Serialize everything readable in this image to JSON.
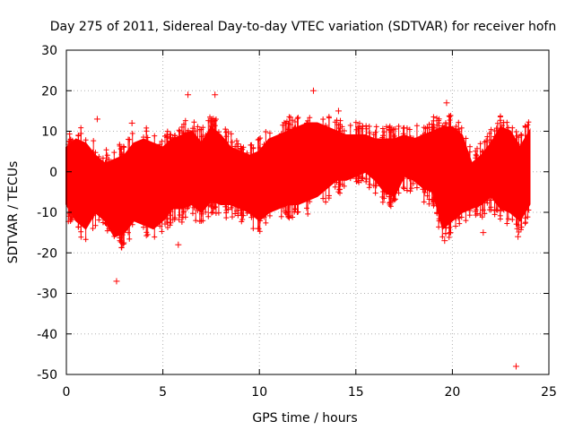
{
  "chart_data": {
    "type": "scatter",
    "title": "Day 275 of 2011, Sidereal Day-to-day VTEC variation (SDTVAR) for receiver hofn",
    "xlabel": "GPS time / hours",
    "ylabel": "SDTVAR / TECUs",
    "xlim": [
      0,
      25
    ],
    "ylim": [
      -50,
      30
    ],
    "xticks": [
      0,
      5,
      10,
      15,
      20,
      25
    ],
    "yticks": [
      30,
      20,
      10,
      0,
      -10,
      -20,
      -30,
      -40,
      -50
    ],
    "xtick_labels": [
      "0",
      "5",
      "10",
      "15",
      "20",
      "25"
    ],
    "ytick_labels": [
      "30",
      "20",
      "10",
      "0",
      "-10",
      "-20",
      "-30",
      "-40",
      "-50"
    ],
    "grid": true,
    "marker": "+",
    "color": "#ff0000",
    "series": [
      {
        "name": "SDTVAR",
        "band": {
          "x": [
            0,
            0.5,
            1,
            1.5,
            2,
            2.5,
            3,
            3.5,
            4,
            4.5,
            5,
            5.5,
            6,
            6.5,
            7,
            7.5,
            8,
            8.5,
            9,
            9.5,
            10,
            10.5,
            11,
            11.5,
            12,
            12.5,
            13,
            13.5,
            14,
            14.5,
            15,
            15.5,
            16,
            16.5,
            17,
            17.5,
            18,
            18.5,
            19,
            19.5,
            20,
            20.5,
            21,
            21.5,
            22,
            22.5,
            23,
            23.5,
            24
          ],
          "upper": [
            6,
            8,
            7,
            4,
            2,
            3,
            4,
            7,
            8,
            7,
            6,
            8,
            9,
            10,
            7,
            11,
            9,
            6,
            5,
            4,
            5,
            8,
            9,
            10,
            11,
            12,
            12,
            11,
            10,
            9,
            9,
            9,
            8,
            8,
            8,
            9,
            8,
            9,
            10,
            11,
            11,
            9,
            2,
            4,
            7,
            11,
            10,
            6,
            10
          ],
          "lower": [
            -8,
            -12,
            -14,
            -10,
            -12,
            -16,
            -15,
            -12,
            -13,
            -14,
            -12,
            -9,
            -9,
            -8,
            -10,
            -7,
            -8,
            -8,
            -9,
            -10,
            -12,
            -10,
            -9,
            -8,
            -8,
            -7,
            -6,
            -4,
            -2,
            -2,
            -1,
            0,
            -2,
            -5,
            -6,
            -1,
            -2,
            -4,
            -5,
            -14,
            -12,
            -10,
            -9,
            -8,
            -6,
            -9,
            -10,
            -12,
            -8
          ]
        },
        "outliers": [
          {
            "x": 2.6,
            "y": -27
          },
          {
            "x": 23.3,
            "y": -48
          },
          {
            "x": 6.3,
            "y": 19
          },
          {
            "x": 7.7,
            "y": 19
          },
          {
            "x": 12.8,
            "y": 20
          },
          {
            "x": 14.1,
            "y": 15
          },
          {
            "x": 19.7,
            "y": 17
          },
          {
            "x": 3.4,
            "y": 12
          },
          {
            "x": 1.6,
            "y": 13
          },
          {
            "x": 5.8,
            "y": -18
          },
          {
            "x": 19.6,
            "y": -17
          },
          {
            "x": 21.6,
            "y": -15
          },
          {
            "x": 23.4,
            "y": -16
          }
        ]
      }
    ]
  }
}
